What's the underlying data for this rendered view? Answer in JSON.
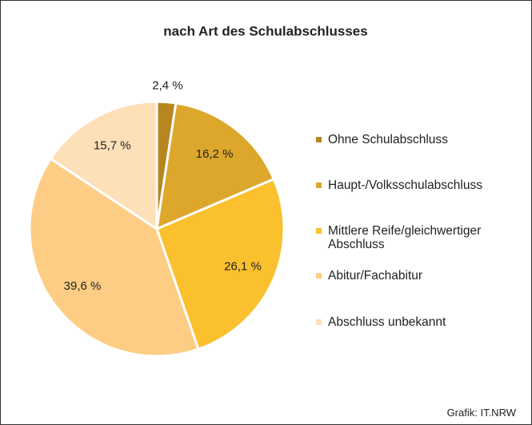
{
  "chart_data": {
    "type": "pie",
    "title": "nach Art des Schulabschlusses",
    "categories": [
      "Ohne Schulabschluss",
      "Haupt-/Volksschulabschluss",
      "Mittlere Reife/gleichwertiger Abschluss",
      "Abitur/Fachabitur",
      "Abschluss unbekannt"
    ],
    "values": [
      2.4,
      16.2,
      26.1,
      39.6,
      15.7
    ],
    "value_labels": [
      "2,4 %",
      "16,2 %",
      "26,1 %",
      "39,6 %",
      "15,7 %"
    ],
    "colors": [
      "#b8861f",
      "#dda72c",
      "#fbc02d",
      "#fdcd85",
      "#fddfb8"
    ],
    "source": "Grafik: IT.NRW"
  }
}
